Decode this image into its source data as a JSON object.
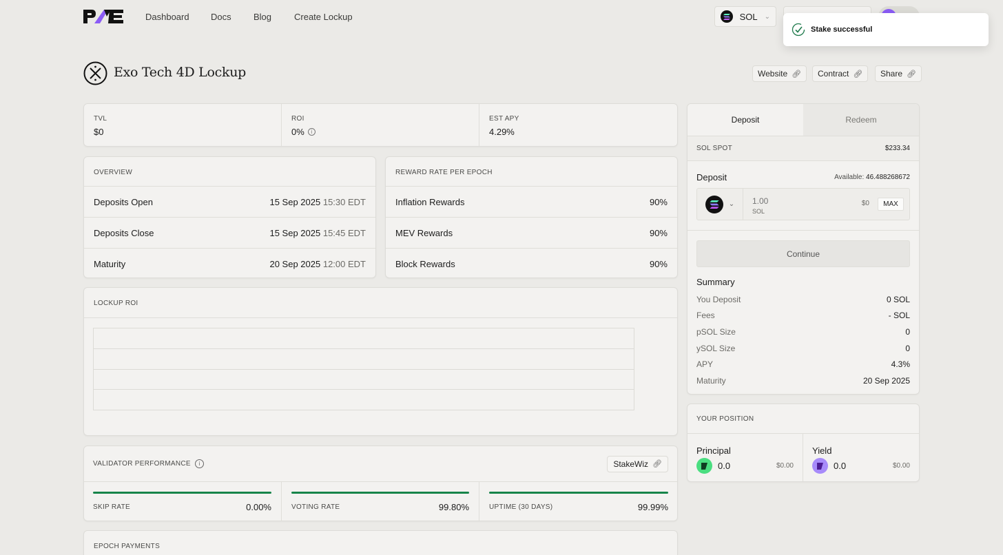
{
  "nav": {
    "links": [
      "Dashboard",
      "Docs",
      "Blog",
      "Create Lockup"
    ],
    "network": "SOL"
  },
  "toast": {
    "message": "Stake successful"
  },
  "page": {
    "title": "Exo Tech 4D Lockup",
    "buttons": {
      "website": "Website",
      "contract": "Contract",
      "share": "Share"
    }
  },
  "stats": {
    "tvl_label": "TVL",
    "tvl": "$0",
    "roi_label": "ROI",
    "roi": "0%",
    "apy_label": "EST APY",
    "apy": "4.29%"
  },
  "overview": {
    "title": "OVERVIEW",
    "rows": [
      {
        "label": "Deposits Open",
        "date": "15 Sep 2025",
        "time": "15:30 EDT"
      },
      {
        "label": "Deposits Close",
        "date": "15 Sep 2025",
        "time": "15:45 EDT"
      },
      {
        "label": "Maturity",
        "date": "20 Sep 2025",
        "time": "12:00 EDT"
      }
    ]
  },
  "rewards": {
    "title": "REWARD RATE PER EPOCH",
    "rows": [
      {
        "label": "Inflation Rewards",
        "value": "90%"
      },
      {
        "label": "MEV Rewards",
        "value": "90%"
      },
      {
        "label": "Block Rewards",
        "value": "90%"
      }
    ]
  },
  "lockup_roi": {
    "title": "LOCKUP ROI"
  },
  "validator": {
    "title": "VALIDATOR PERFORMANCE",
    "link": "StakeWiz",
    "metrics": [
      {
        "label": "SKIP RATE",
        "value": "0.00%",
        "fill": 1.0
      },
      {
        "label": "VOTING RATE",
        "value": "99.80%",
        "fill": 1.0
      },
      {
        "label": "UPTIME (30 DAYS)",
        "value": "99.99%",
        "fill": 1.0
      }
    ]
  },
  "epoch": {
    "title": "EPOCH PAYMENTS"
  },
  "deposit_panel": {
    "tabs": [
      "Deposit",
      "Redeem"
    ],
    "spot_label": "SOL SPOT",
    "spot_value": "$233.34",
    "deposit_label": "Deposit",
    "available_label": "Available:",
    "available_value": "46.488268672",
    "amount_placeholder": "1.00",
    "unit": "SOL",
    "usd": "$0",
    "max": "MAX",
    "continue": "Continue",
    "summary_title": "Summary",
    "summary": [
      {
        "label": "You Deposit",
        "value": "0 SOL"
      },
      {
        "label": "Fees",
        "value": "- SOL"
      },
      {
        "label": "pSOL Size",
        "value": "0"
      },
      {
        "label": "ySOL Size",
        "value": "0"
      },
      {
        "label": "APY",
        "value": "4.3%"
      },
      {
        "label": "Maturity",
        "value": "20 Sep 2025"
      }
    ]
  },
  "position": {
    "title": "YOUR POSITION",
    "principal_label": "Principal",
    "principal_amount": "0.0",
    "principal_usd": "$0.00",
    "yield_label": "Yield",
    "yield_amount": "0.0",
    "yield_usd": "$0.00"
  },
  "colors": {
    "accent_green": "#17844a",
    "purple": "#8b5cf6",
    "mint": "#4ade80"
  }
}
